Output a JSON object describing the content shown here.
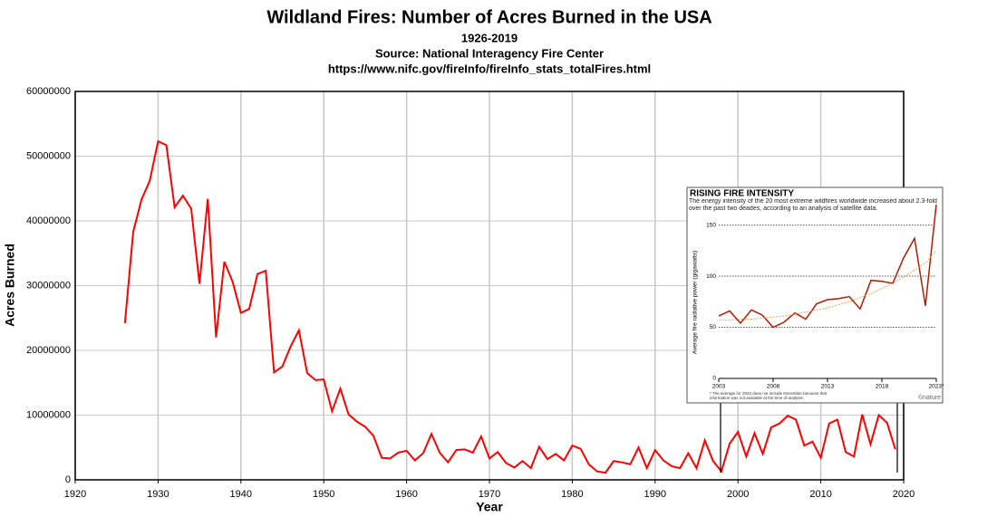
{
  "chart_data": [
    {
      "type": "line",
      "title": "Wildland Fires: Number of Acres Burned in the USA",
      "subtitle": "1926-2019",
      "source": "Source: National Interagency Fire Center",
      "url": "https://www.nifc.gov/fireInfo/fireInfo_stats_totalFires.html",
      "xlabel": "Year",
      "ylabel": "Acres Burned",
      "x": [
        1926,
        1927,
        1928,
        1929,
        1930,
        1931,
        1932,
        1933,
        1934,
        1935,
        1936,
        1937,
        1938,
        1939,
        1940,
        1941,
        1942,
        1943,
        1944,
        1945,
        1946,
        1947,
        1948,
        1949,
        1950,
        1951,
        1952,
        1953,
        1954,
        1955,
        1956,
        1957,
        1958,
        1959,
        1960,
        1961,
        1962,
        1963,
        1964,
        1965,
        1966,
        1967,
        1968,
        1969,
        1970,
        1971,
        1972,
        1973,
        1974,
        1975,
        1976,
        1977,
        1978,
        1979,
        1980,
        1981,
        1982,
        1983,
        1984,
        1985,
        1986,
        1987,
        1988,
        1989,
        1990,
        1991,
        1992,
        1993,
        1994,
        1995,
        1996,
        1997,
        1998,
        1999,
        2000,
        2001,
        2002,
        2003,
        2004,
        2005,
        2006,
        2007,
        2008,
        2009,
        2010,
        2011,
        2012,
        2013,
        2014,
        2015,
        2016,
        2017,
        2018,
        2019
      ],
      "series": [
        {
          "color": "#ff0000",
          "values": [
            24200000,
            38300000,
            43300000,
            46200000,
            52300000,
            51700000,
            42100000,
            43900000,
            41900000,
            30300000,
            43400000,
            22000000,
            33700000,
            30600000,
            25800000,
            26400000,
            31800000,
            32300000,
            16600000,
            17500000,
            20600000,
            23100000,
            16500000,
            15400000,
            15500000,
            10600000,
            14100000,
            10100000,
            9000000,
            8200000,
            6800000,
            3400000,
            3300000,
            4200000,
            4500000,
            3000000,
            4100000,
            7100000,
            4200000,
            2700000,
            4600000,
            4700000,
            4200000,
            6700000,
            3300000,
            4300000,
            2600000,
            1900000,
            2900000,
            1800000,
            5100000,
            3200000,
            4000000,
            3000000,
            5300000,
            4800000,
            2400000,
            1300000,
            1100000,
            2900000,
            2700000,
            2400000,
            5000000,
            1800000,
            4600000,
            3000000,
            2100000,
            1800000,
            4100000,
            1800000,
            6100000,
            2900000,
            1300000,
            5600000,
            7400000,
            3600000,
            7200000,
            4000000,
            8100000,
            8700000,
            9900000,
            9300000,
            5300000,
            5900000,
            3400000,
            8700000,
            9300000,
            4300000,
            3600000,
            10100000,
            5500000,
            10000000,
            8800000,
            4700000
          ]
        }
      ],
      "xlim": [
        1920,
        2020
      ],
      "ylim": [
        0,
        60000000
      ],
      "xticks": [
        1920,
        1930,
        1940,
        1950,
        1960,
        1970,
        1980,
        1990,
        2000,
        2010,
        2020
      ],
      "yticks": [
        0,
        10000000,
        20000000,
        30000000,
        40000000,
        50000000,
        60000000
      ],
      "grid": true
    },
    {
      "type": "line",
      "title": "RISING FIRE INTENSITY",
      "subtitle": "The energy intensity of the 20 most extreme wildfires worldwide increased about 2.3-fold over the past two deades, according to an analysis of satellite data.",
      "ylabel": "Average fire radiative power (gigawatts)",
      "footnote": "* The average for 2023 does not include December because that information was not available at the time of analysis.",
      "credit": "©nature",
      "x": [
        2003,
        2004,
        2005,
        2006,
        2007,
        2008,
        2009,
        2010,
        2011,
        2012,
        2013,
        2014,
        2015,
        2016,
        2017,
        2018,
        2019,
        2020,
        2021,
        2022,
        2023
      ],
      "series": [
        {
          "color": "#b01c00",
          "values": [
            61,
            66,
            54,
            67,
            62,
            50,
            55,
            64,
            58,
            73,
            77,
            78,
            80,
            68,
            96,
            95,
            93,
            118,
            137,
            71,
            170
          ]
        },
        {
          "color": "#f0a050",
          "values": [
            57,
            57,
            58,
            58,
            59,
            60,
            61,
            63,
            65,
            67,
            69,
            72,
            75,
            79,
            83,
            88,
            93,
            99,
            106,
            113,
            125
          ]
        }
      ],
      "xlim": [
        2003,
        2023
      ],
      "ylim": [
        0,
        170
      ],
      "xticks": [
        2003,
        2008,
        2013,
        2018,
        {
          "value": 2023,
          "label": "2023*"
        }
      ],
      "yticks": [
        0,
        50,
        100,
        150
      ],
      "grid": true
    }
  ]
}
